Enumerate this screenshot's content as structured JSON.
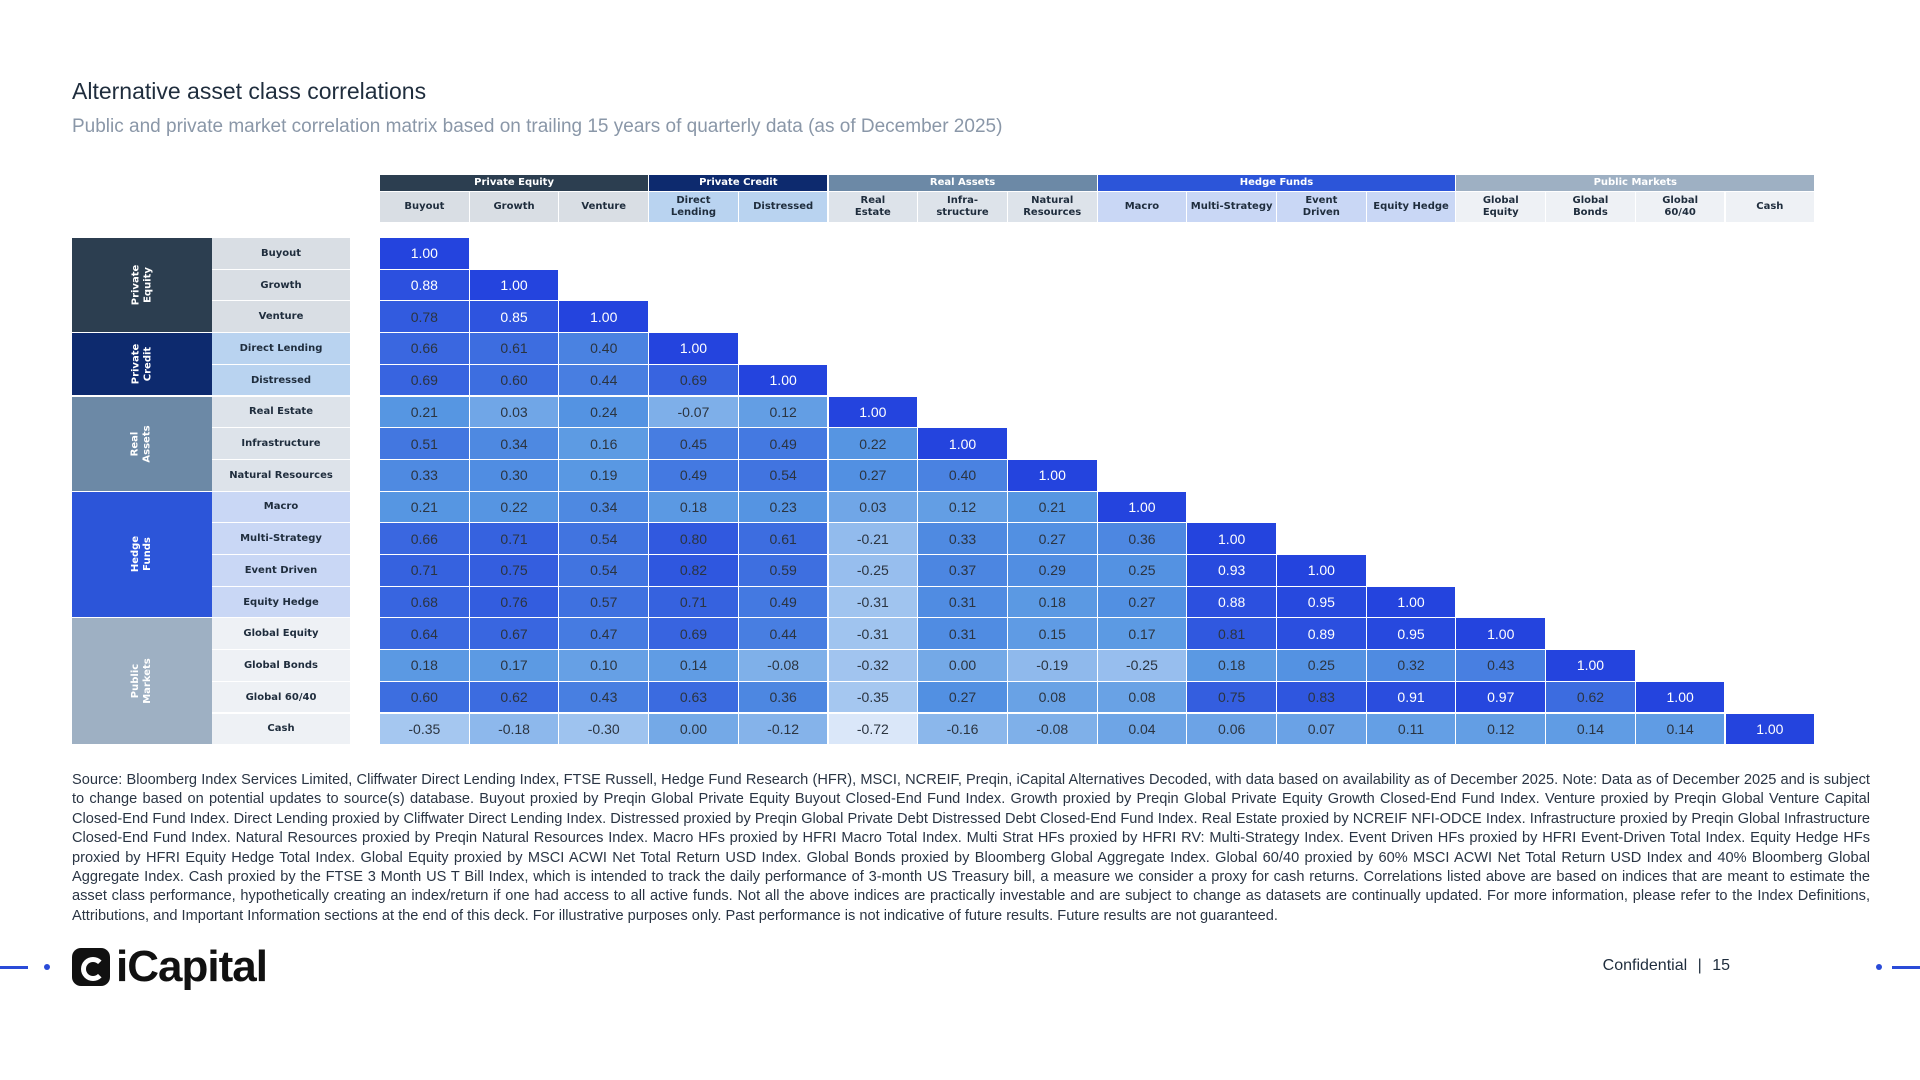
{
  "title": "Alternative asset class correlations",
  "subtitle": "Public and private market correlation matrix based on trailing 15 years of quarterly data (as of December 2025)",
  "groups": [
    {
      "name": "Private Equity",
      "color": "#2c3e50",
      "label_bg": "#d9dee4",
      "span": 3,
      "side": "Private\nEquity",
      "side_color": "#2c3e50"
    },
    {
      "name": "Private Credit",
      "color": "#0d2a6e",
      "label_bg": "#b9d3f0",
      "span": 2,
      "side": "Private\nCredit",
      "side_color": "#0d2a6e"
    },
    {
      "name": "Real Assets",
      "color": "#6c89a6",
      "label_bg": "#dde3ea",
      "span": 3,
      "side": "Real\nAssets",
      "side_color": "#6c89a6"
    },
    {
      "name": "Hedge Funds",
      "color": "#2c55d9",
      "label_bg": "#c9d7f5",
      "span": 4,
      "side": "Hedge\nFunds",
      "side_color": "#2c55d9"
    },
    {
      "name": "Public Markets",
      "color": "#9eb0c3",
      "label_bg": "#eef1f5",
      "span": 4,
      "side": "Public\nMarkets",
      "side_color": "#9eb0c3"
    }
  ],
  "columns": [
    "Buyout",
    "Growth",
    "Venture",
    "Direct\nLending",
    "Distressed",
    "Real\nEstate",
    "Infra-\nstructure",
    "Natural\nResources",
    "Macro",
    "Multi-Strategy",
    "Event\nDriven",
    "Equity Hedge",
    "Global\nEquity",
    "Global\nBonds",
    "Global\n60/40",
    "Cash"
  ],
  "rows": [
    "Buyout",
    "Growth",
    "Venture",
    "Direct Lending",
    "Distressed",
    "Real Estate",
    "Infrastructure",
    "Natural Resources",
    "Macro",
    "Multi-Strategy",
    "Event Driven",
    "Equity Hedge",
    "Global Equity",
    "Global Bonds",
    "Global 60/40",
    "Cash"
  ],
  "matrix": [
    [
      "1.00"
    ],
    [
      "0.88",
      "1.00"
    ],
    [
      "0.78",
      "0.85",
      "1.00"
    ],
    [
      "0.66",
      "0.61",
      "0.40",
      "1.00"
    ],
    [
      "0.69",
      "0.60",
      "0.44",
      "0.69",
      "1.00"
    ],
    [
      "0.21",
      "0.03",
      "0.24",
      "-0.07",
      "0.12",
      "1.00"
    ],
    [
      "0.51",
      "0.34",
      "0.16",
      "0.45",
      "0.49",
      "0.22",
      "1.00"
    ],
    [
      "0.33",
      "0.30",
      "0.19",
      "0.49",
      "0.54",
      "0.27",
      "0.40",
      "1.00"
    ],
    [
      "0.21",
      "0.22",
      "0.34",
      "0.18",
      "0.23",
      "0.03",
      "0.12",
      "0.21",
      "1.00"
    ],
    [
      "0.66",
      "0.71",
      "0.54",
      "0.80",
      "0.61",
      "-0.21",
      "0.33",
      "0.27",
      "0.36",
      "1.00"
    ],
    [
      "0.71",
      "0.75",
      "0.54",
      "0.82",
      "0.59",
      "-0.25",
      "0.37",
      "0.29",
      "0.25",
      "0.93",
      "1.00"
    ],
    [
      "0.68",
      "0.76",
      "0.57",
      "0.71",
      "0.49",
      "-0.31",
      "0.31",
      "0.18",
      "0.27",
      "0.88",
      "0.95",
      "1.00"
    ],
    [
      "0.64",
      "0.67",
      "0.47",
      "0.69",
      "0.44",
      "-0.31",
      "0.31",
      "0.15",
      "0.17",
      "0.81",
      "0.89",
      "0.95",
      "1.00"
    ],
    [
      "0.18",
      "0.17",
      "0.10",
      "0.14",
      "-0.08",
      "-0.32",
      "0.00",
      "-0.19",
      "-0.25",
      "0.18",
      "0.25",
      "0.32",
      "0.43",
      "1.00"
    ],
    [
      "0.60",
      "0.62",
      "0.43",
      "0.63",
      "0.36",
      "-0.35",
      "0.27",
      "0.08",
      "0.08",
      "0.75",
      "0.83",
      "0.91",
      "0.97",
      "0.62",
      "1.00"
    ],
    [
      "-0.35",
      "-0.18",
      "-0.30",
      "0.00",
      "-0.12",
      "-0.72",
      "-0.16",
      "-0.08",
      "0.04",
      "0.06",
      "0.07",
      "0.11",
      "0.12",
      "0.14",
      "0.14",
      "1.00"
    ]
  ],
  "footnote": "Source: Bloomberg Index Services Limited, Cliffwater Direct Lending Index, FTSE Russell, Hedge Fund Research (HFR), MSCI, NCREIF, Preqin, iCapital Alternatives Decoded, with data based on availability as of December 2025. Note: Data as of December 2025 and is subject to change based on potential updates to source(s) database. Buyout proxied by Preqin Global Private Equity Buyout Closed-End Fund Index. Growth proxied by Preqin Global Private Equity Growth Closed-End Fund Index. Venture proxied by Preqin Global Venture Capital Closed-End Fund Index. Direct Lending proxied by Cliffwater Direct Lending Index. Distressed proxied by Preqin Global Private Debt Distressed Debt Closed-End Fund Index. Real Estate proxied by NCREIF NFI-ODCE Index. Infrastructure proxied by Preqin Global Infrastructure Closed-End Fund Index. Natural Resources proxied by Preqin Natural Resources Index. Macro HFs proxied by HFRI Macro Total Index. Multi Strat HFs proxied by HFRI RV: Multi-Strategy Index. Event Driven HFs proxied by HFRI Event-Driven Total Index. Equity Hedge HFs proxied by HFRI Equity Hedge Total Index. Global Equity proxied by MSCI ACWI Net Total Return USD Index. Global Bonds proxied by Bloomberg Global Aggregate Index. Global 60/40 proxied by 60% MSCI ACWI Net Total Return USD Index and 40% Bloomberg Global Aggregate Index. Cash proxied by the FTSE 3 Month US T Bill Index, which is intended to track the daily performance of 3-month US Treasury bill, a measure we consider a proxy for cash returns. Correlations listed above are based on indices that are meant to estimate the asset class performance, hypothetically creating an index/return if one had access to all active funds. Not all the above indices are practically investable and are subject to change as datasets are continually updated. For more information, please refer to the Index Definitions, Attributions, and Important Information sections at the end of this deck. For illustrative purposes only. Past performance is not indicative of future results. Future results are not guaranteed.",
  "logo_text": "iCapital",
  "confidential": "Confidential",
  "page_separator": "|",
  "page_number": "15",
  "accent_color": "#2a4bd8"
}
